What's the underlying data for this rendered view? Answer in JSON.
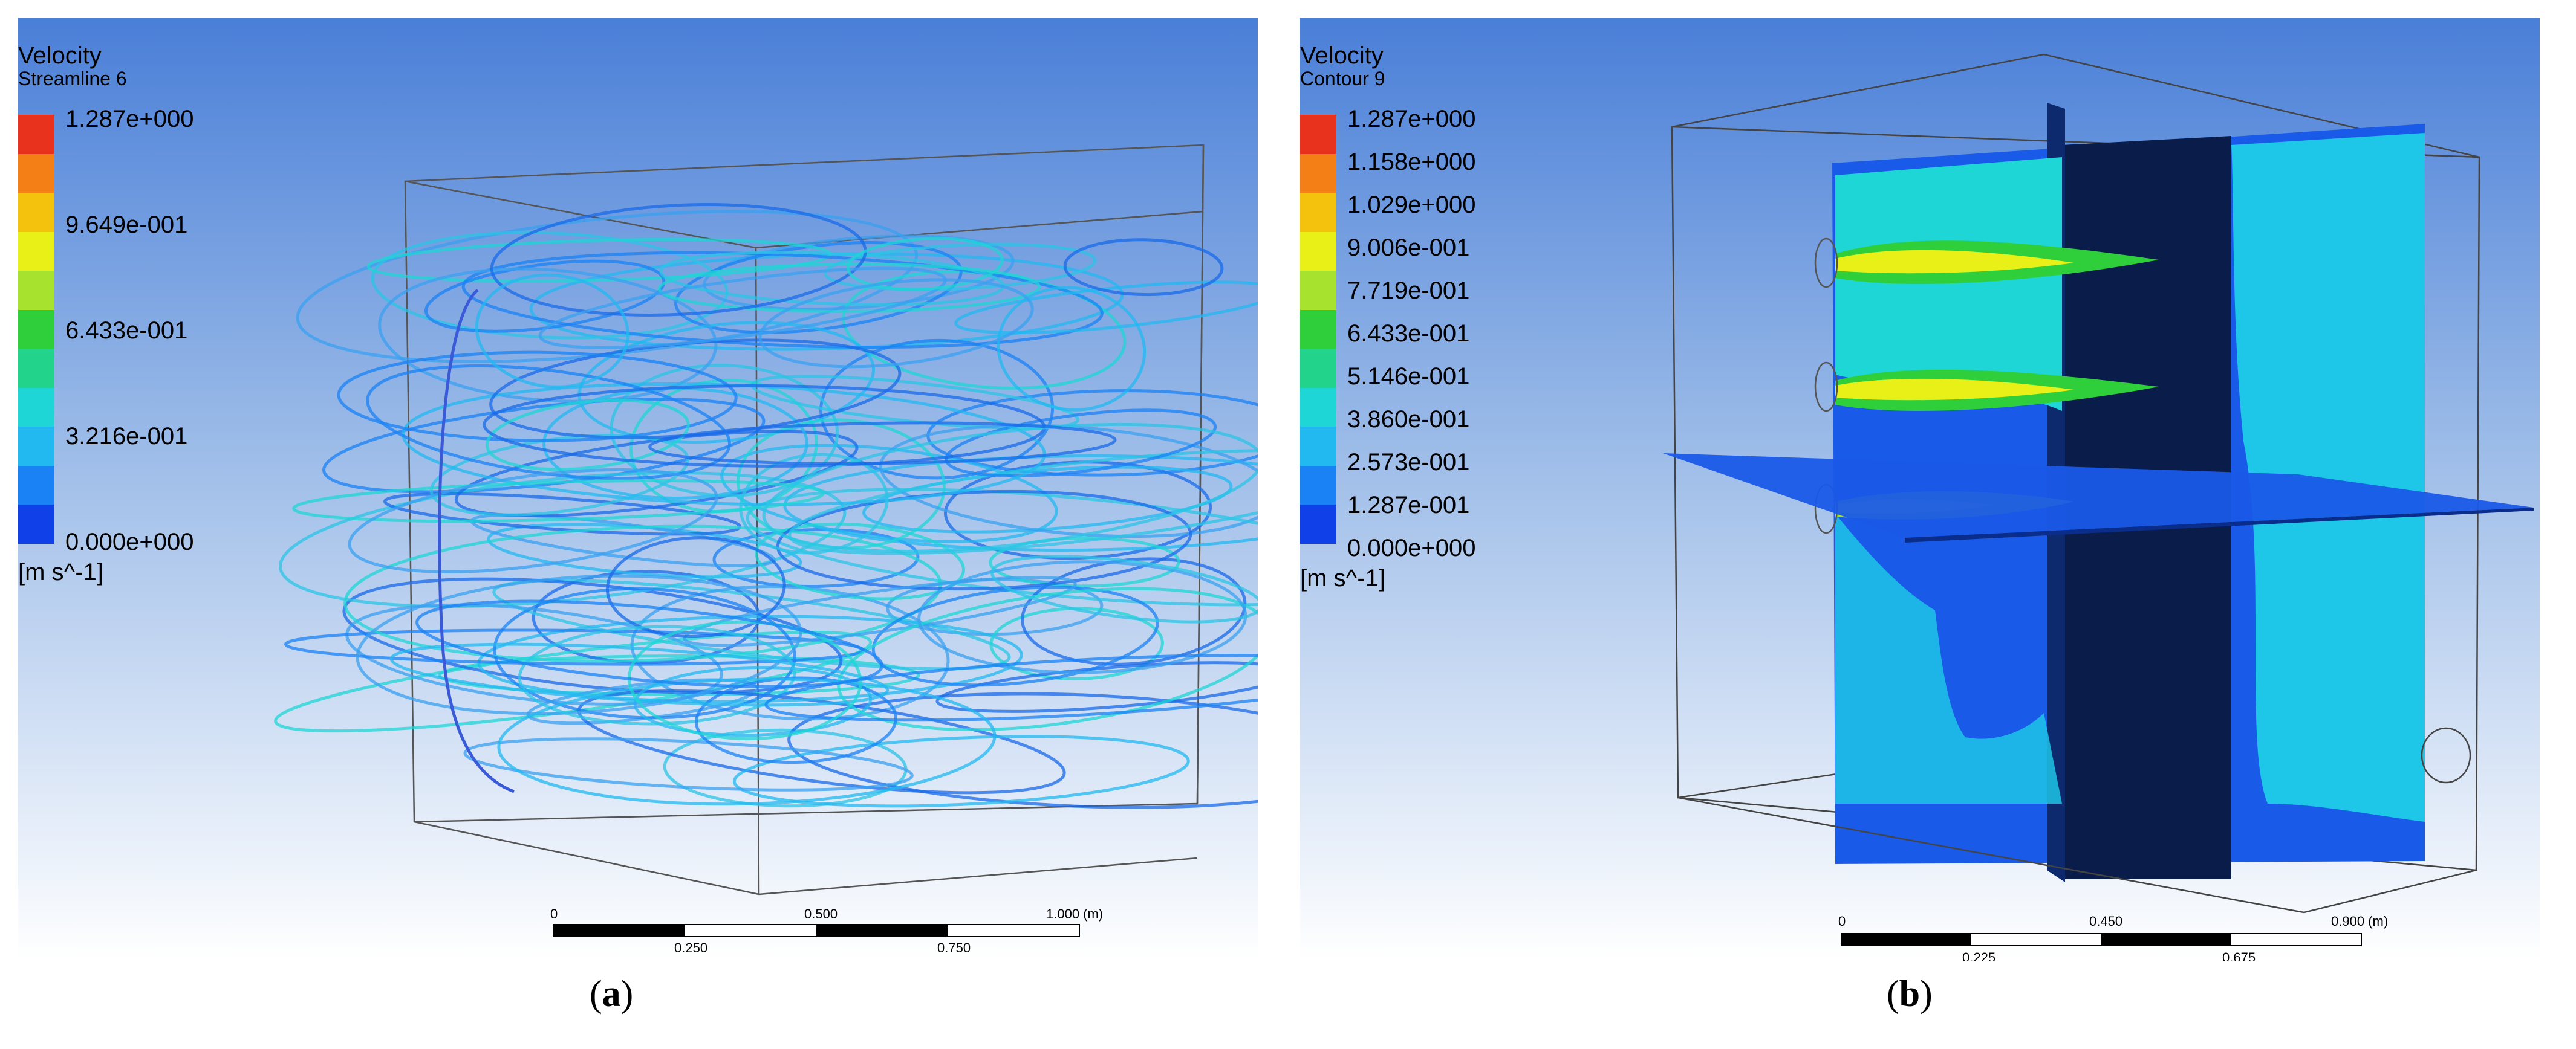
{
  "panels": [
    {
      "legend": {
        "title": "Velocity",
        "subtitle": "Streamline 6",
        "labels": [
          "1.287e+000",
          "9.649e-001",
          "6.433e-001",
          "3.216e-001",
          "0.000e+000"
        ],
        "unit": "[m s^-1]"
      },
      "scale": {
        "top": [
          "0",
          "0.500",
          "1.000 (m)"
        ],
        "bottom": [
          "0.250",
          "0.750"
        ]
      },
      "caption": "a"
    },
    {
      "legend": {
        "title": "Velocity",
        "subtitle": "Contour 9",
        "labels": [
          "1.287e+000",
          "1.158e+000",
          "1.029e+000",
          "9.006e-001",
          "7.719e-001",
          "6.433e-001",
          "5.146e-001",
          "3.860e-001",
          "2.573e-001",
          "1.287e-001",
          "0.000e+000"
        ],
        "unit": "[m s^-1]"
      },
      "scale": {
        "top": [
          "0",
          "0.450",
          "0.900 (m)"
        ],
        "bottom": [
          "0.225",
          "0.675"
        ]
      },
      "caption": "b"
    }
  ],
  "colors": {
    "colormap": [
      "#e8321e",
      "#f57f17",
      "#f4c20d",
      "#e8f018",
      "#a6e22e",
      "#2ecf3a",
      "#22d38c",
      "#1ed6d6",
      "#22b8f0",
      "#1a82f4",
      "#1040e8"
    ]
  }
}
